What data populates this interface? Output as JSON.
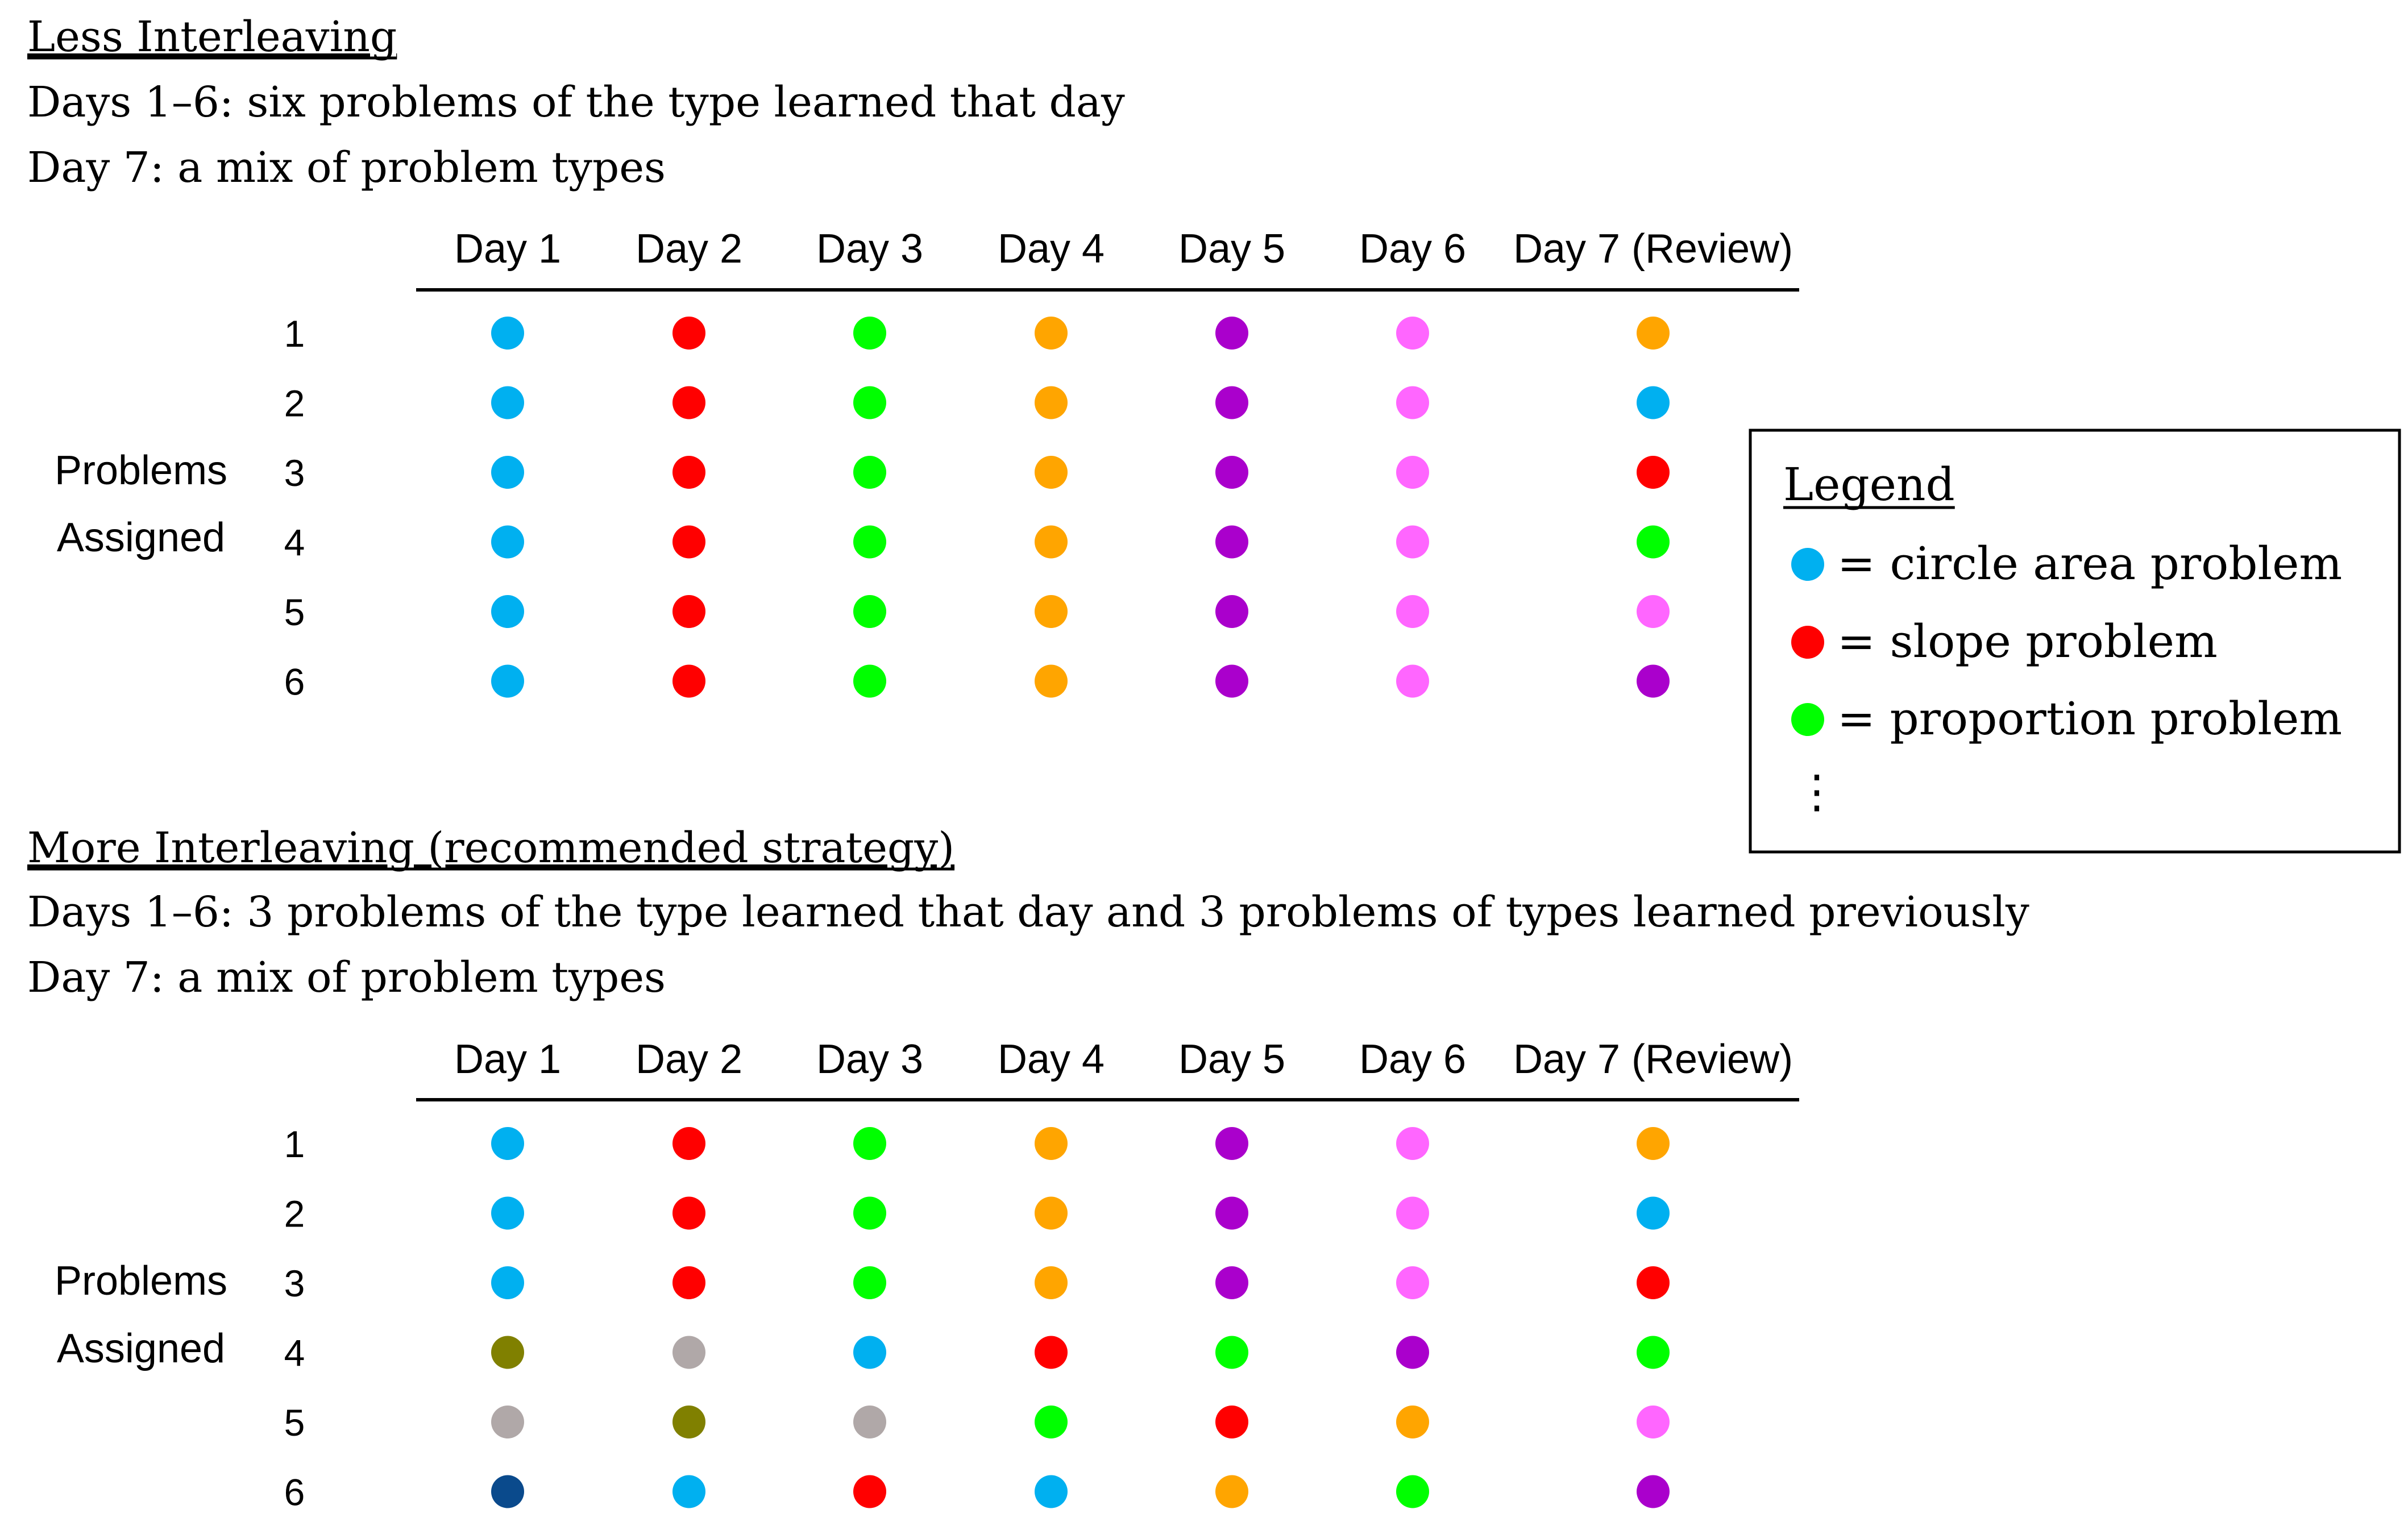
{
  "colors": {
    "cyan": "#00B0F0",
    "red": "#FF0000",
    "green": "#00FF00",
    "orange": "#FFA500",
    "purple": "#AA00CC",
    "pink": "#FF66FF",
    "olive": "#808000",
    "gray": "#B0A8A8",
    "navy": "#0A4A8C"
  },
  "day_headers": [
    "Day 1",
    "Day 2",
    "Day 3",
    "Day 4",
    "Day 5",
    "Day 6",
    "Day 7 (Review)"
  ],
  "problem_numbers": [
    "1",
    "2",
    "3",
    "4",
    "5",
    "6"
  ],
  "row_label": [
    "Problems",
    "Assigned"
  ],
  "sections": [
    {
      "title": "Less Interleaving",
      "lines": [
        "Days 1–6: six problems of the type learned that day",
        "Day 7: a mix of problem types"
      ],
      "grid": [
        [
          "cyan",
          "red",
          "green",
          "orange",
          "purple",
          "pink",
          "orange"
        ],
        [
          "cyan",
          "red",
          "green",
          "orange",
          "purple",
          "pink",
          "cyan"
        ],
        [
          "cyan",
          "red",
          "green",
          "orange",
          "purple",
          "pink",
          "red"
        ],
        [
          "cyan",
          "red",
          "green",
          "orange",
          "purple",
          "pink",
          "green"
        ],
        [
          "cyan",
          "red",
          "green",
          "orange",
          "purple",
          "pink",
          "pink"
        ],
        [
          "cyan",
          "red",
          "green",
          "orange",
          "purple",
          "pink",
          "purple"
        ]
      ]
    },
    {
      "title": "More Interleaving (recommended strategy)",
      "lines": [
        "Days 1–6: 3 problems of the type learned that day and 3 problems of types learned previously",
        "Day 7: a mix of problem types"
      ],
      "grid": [
        [
          "cyan",
          "red",
          "green",
          "orange",
          "purple",
          "pink",
          "orange"
        ],
        [
          "cyan",
          "red",
          "green",
          "orange",
          "purple",
          "pink",
          "cyan"
        ],
        [
          "cyan",
          "red",
          "green",
          "orange",
          "purple",
          "pink",
          "red"
        ],
        [
          "olive",
          "gray",
          "cyan",
          "red",
          "green",
          "purple",
          "green"
        ],
        [
          "gray",
          "olive",
          "gray",
          "green",
          "red",
          "orange",
          "pink"
        ],
        [
          "navy",
          "cyan",
          "red",
          "cyan",
          "orange",
          "green",
          "purple"
        ]
      ]
    }
  ],
  "legend": {
    "title": "Legend",
    "items": [
      {
        "color": "cyan",
        "label": "= circle area problem"
      },
      {
        "color": "red",
        "label": "= slope problem"
      },
      {
        "color": "green",
        "label": "= proportion problem"
      }
    ],
    "more": "⋮"
  }
}
